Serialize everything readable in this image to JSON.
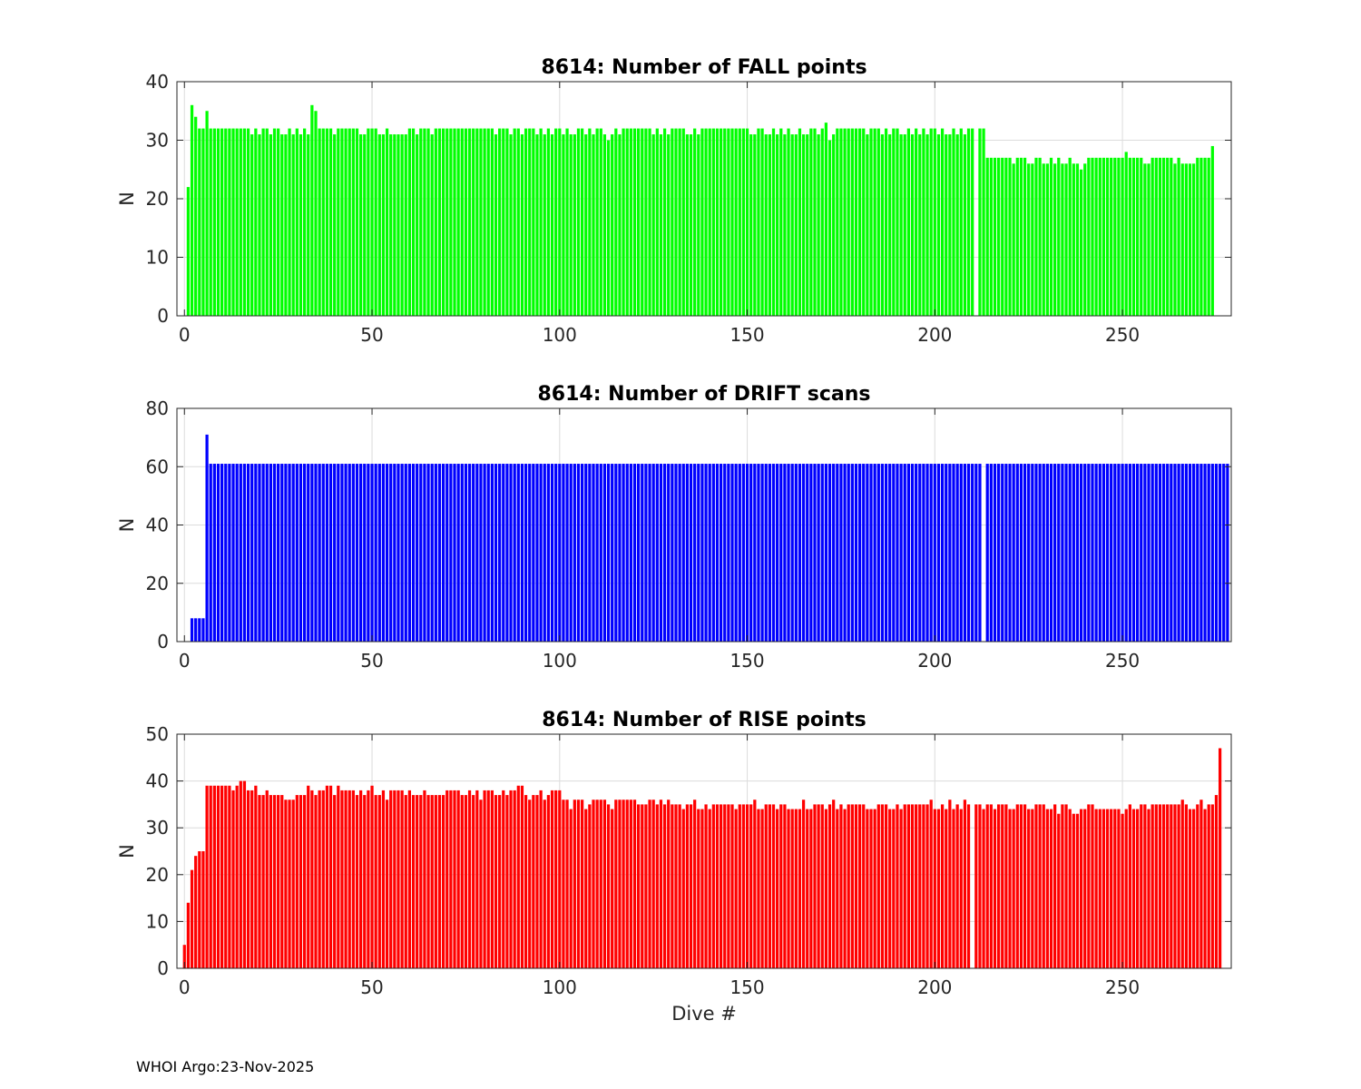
{
  "footer": "WHOI Argo:23-Nov-2025",
  "chart_data": [
    {
      "type": "bar",
      "title": "8614: Number of FALL points",
      "xlabel": "",
      "ylabel": "N",
      "xlim": [
        -2,
        279
      ],
      "ylim": [
        0,
        40
      ],
      "xticks": [
        0,
        50,
        100,
        150,
        200,
        250
      ],
      "yticks": [
        0,
        10,
        20,
        30,
        40
      ],
      "grid": true,
      "color": "#00ff00",
      "x_start": 0,
      "values": [
        0,
        22,
        36,
        34,
        32,
        32,
        35,
        32,
        32,
        32,
        32,
        32,
        32,
        32,
        32,
        32,
        32,
        32,
        31,
        32,
        31,
        32,
        32,
        31,
        32,
        32,
        31,
        31,
        32,
        31,
        32,
        31,
        32,
        31,
        36,
        35,
        32,
        32,
        32,
        32,
        31,
        32,
        32,
        32,
        32,
        32,
        32,
        31,
        31,
        32,
        32,
        32,
        31,
        31,
        32,
        31,
        31,
        31,
        31,
        31,
        32,
        32,
        31,
        32,
        32,
        32,
        31,
        32,
        32,
        32,
        32,
        32,
        32,
        32,
        32,
        32,
        32,
        32,
        32,
        32,
        32,
        32,
        32,
        31,
        32,
        32,
        32,
        31,
        32,
        32,
        31,
        32,
        32,
        32,
        31,
        32,
        31,
        32,
        31,
        32,
        32,
        31,
        32,
        31,
        31,
        32,
        32,
        31,
        32,
        31,
        32,
        32,
        31,
        30,
        31,
        32,
        31,
        32,
        32,
        32,
        32,
        32,
        32,
        32,
        32,
        31,
        32,
        31,
        32,
        31,
        32,
        32,
        32,
        32,
        31,
        31,
        32,
        31,
        32,
        32,
        32,
        32,
        32,
        32,
        32,
        32,
        32,
        32,
        32,
        32,
        32,
        31,
        31,
        32,
        32,
        31,
        31,
        32,
        31,
        32,
        31,
        32,
        31,
        31,
        32,
        31,
        31,
        32,
        32,
        31,
        32,
        33,
        30,
        31,
        32,
        32,
        32,
        32,
        32,
        32,
        32,
        32,
        31,
        32,
        32,
        32,
        31,
        32,
        31,
        32,
        32,
        31,
        31,
        32,
        31,
        32,
        31,
        32,
        31,
        32,
        32,
        31,
        32,
        31,
        31,
        32,
        31,
        32,
        31,
        32,
        32,
        0,
        32,
        32,
        27,
        27,
        27,
        27,
        27,
        27,
        27,
        26,
        27,
        27,
        27,
        26,
        26,
        27,
        27,
        26,
        26,
        27,
        26,
        27,
        26,
        26,
        27,
        26,
        26,
        25,
        26,
        27,
        27,
        27,
        27,
        27,
        27,
        27,
        27,
        27,
        27,
        28,
        27,
        27,
        27,
        27,
        26,
        26,
        27,
        27,
        27,
        27,
        27,
        27,
        26,
        27,
        26,
        26,
        26,
        26,
        27,
        27,
        27,
        27,
        29
      ]
    },
    {
      "type": "bar",
      "title": "8614: Number of DRIFT scans",
      "xlabel": "",
      "ylabel": "N",
      "xlim": [
        -2,
        279
      ],
      "ylim": [
        0,
        80
      ],
      "xticks": [
        0,
        50,
        100,
        150,
        200,
        250
      ],
      "yticks": [
        0,
        20,
        40,
        60,
        80
      ],
      "grid": true,
      "color": "#0000ff",
      "x_start": 0,
      "values": [
        0,
        0,
        8,
        8,
        8,
        8,
        71,
        61,
        61,
        61,
        61,
        61,
        61,
        61,
        61,
        61,
        61,
        61,
        61,
        61,
        61,
        61,
        61,
        61,
        61,
        61,
        61,
        61,
        61,
        61,
        61,
        61,
        61,
        61,
        61,
        61,
        61,
        61,
        61,
        61,
        61,
        61,
        61,
        61,
        61,
        61,
        61,
        61,
        61,
        61,
        61,
        61,
        61,
        61,
        61,
        61,
        61,
        61,
        61,
        61,
        61,
        61,
        61,
        61,
        61,
        61,
        61,
        61,
        61,
        61,
        61,
        61,
        61,
        61,
        61,
        61,
        61,
        61,
        61,
        61,
        61,
        61,
        61,
        61,
        61,
        61,
        61,
        61,
        61,
        61,
        61,
        61,
        61,
        61,
        61,
        61,
        61,
        61,
        61,
        61,
        61,
        61,
        61,
        61,
        61,
        61,
        61,
        61,
        61,
        61,
        61,
        61,
        61,
        61,
        61,
        61,
        61,
        61,
        61,
        61,
        61,
        61,
        61,
        61,
        61,
        61,
        61,
        61,
        61,
        61,
        61,
        61,
        61,
        61,
        61,
        61,
        61,
        61,
        61,
        61,
        61,
        61,
        61,
        61,
        61,
        61,
        61,
        61,
        61,
        61,
        61,
        61,
        61,
        61,
        61,
        61,
        61,
        61,
        61,
        61,
        61,
        61,
        61,
        61,
        61,
        61,
        61,
        61,
        61,
        61,
        61,
        61,
        61,
        61,
        61,
        61,
        61,
        61,
        61,
        61,
        61,
        61,
        61,
        61,
        61,
        61,
        61,
        61,
        61,
        61,
        61,
        61,
        61,
        61,
        61,
        61,
        61,
        61,
        61,
        61,
        61,
        61,
        61,
        61,
        61,
        61,
        61,
        61,
        61,
        61,
        61,
        61,
        61,
        0,
        61,
        61,
        61,
        61,
        61,
        61,
        61,
        61,
        61,
        61,
        61,
        61,
        61,
        61,
        61,
        61,
        61,
        61,
        61,
        61,
        61,
        61,
        61,
        61,
        61,
        61,
        61,
        61,
        61,
        61,
        61,
        61,
        61,
        61,
        61,
        61,
        61,
        61,
        61,
        61,
        61,
        61,
        61,
        61,
        61,
        61,
        61,
        61,
        61,
        61,
        61,
        61,
        61,
        61,
        61,
        61,
        61,
        61,
        61,
        61,
        61,
        61,
        61,
        61,
        61
      ]
    },
    {
      "type": "bar",
      "title": "8614: Number of RISE points",
      "xlabel": "Dive #",
      "ylabel": "N",
      "xlim": [
        -2,
        279
      ],
      "ylim": [
        0,
        50
      ],
      "xticks": [
        0,
        50,
        100,
        150,
        200,
        250
      ],
      "yticks": [
        0,
        10,
        20,
        30,
        40,
        50
      ],
      "grid": true,
      "color": "#ff0000",
      "x_start": 0,
      "values": [
        5,
        14,
        21,
        24,
        25,
        25,
        39,
        39,
        39,
        39,
        39,
        39,
        39,
        38,
        39,
        40,
        40,
        38,
        38,
        39,
        37,
        37,
        38,
        37,
        37,
        37,
        37,
        36,
        36,
        36,
        37,
        37,
        37,
        39,
        38,
        37,
        38,
        38,
        39,
        39,
        37,
        39,
        38,
        38,
        38,
        38,
        37,
        38,
        37,
        38,
        39,
        37,
        37,
        38,
        36,
        38,
        38,
        38,
        38,
        37,
        38,
        37,
        37,
        37,
        38,
        37,
        37,
        37,
        37,
        37,
        38,
        38,
        38,
        38,
        37,
        37,
        38,
        37,
        38,
        36,
        38,
        38,
        38,
        37,
        37,
        38,
        37,
        38,
        38,
        39,
        39,
        37,
        36,
        37,
        37,
        38,
        36,
        37,
        38,
        38,
        38,
        36,
        36,
        34,
        36,
        36,
        36,
        34,
        35,
        36,
        36,
        36,
        36,
        35,
        34,
        36,
        36,
        36,
        36,
        36,
        36,
        35,
        35,
        35,
        36,
        36,
        35,
        36,
        35,
        36,
        35,
        35,
        35,
        34,
        35,
        35,
        36,
        34,
        34,
        35,
        34,
        35,
        35,
        35,
        35,
        35,
        35,
        34,
        35,
        35,
        35,
        35,
        36,
        34,
        34,
        35,
        35,
        35,
        34,
        35,
        35,
        34,
        34,
        34,
        34,
        36,
        34,
        34,
        35,
        35,
        35,
        34,
        35,
        36,
        34,
        35,
        34,
        35,
        35,
        35,
        35,
        35,
        34,
        34,
        34,
        35,
        35,
        35,
        34,
        34,
        35,
        34,
        35,
        35,
        35,
        35,
        35,
        35,
        35,
        36,
        34,
        34,
        35,
        34,
        36,
        34,
        35,
        34,
        36,
        35,
        0,
        35,
        35,
        34,
        35,
        35,
        34,
        35,
        35,
        35,
        34,
        34,
        35,
        35,
        35,
        34,
        34,
        35,
        35,
        35,
        34,
        34,
        35,
        33,
        35,
        35,
        34,
        33,
        33,
        34,
        34,
        35,
        35,
        34,
        34,
        34,
        34,
        34,
        34,
        34,
        33,
        34,
        35,
        34,
        34,
        35,
        35,
        34,
        35,
        35,
        35,
        35,
        35,
        35,
        35,
        35,
        36,
        35,
        34,
        34,
        35,
        36,
        34,
        35,
        35,
        37,
        47
      ]
    }
  ]
}
